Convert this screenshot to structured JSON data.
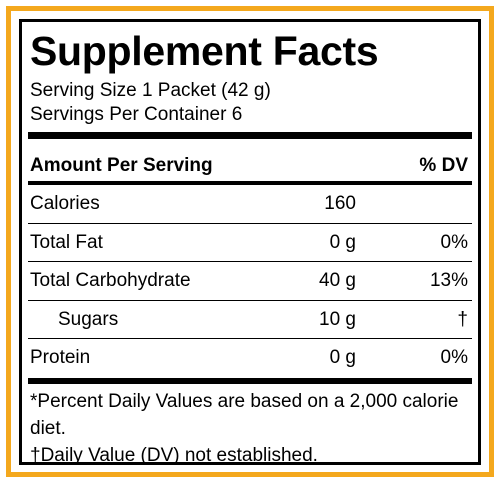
{
  "title": "Supplement Facts",
  "serving_size": "Serving Size 1 Packet (42 g)",
  "servings_per_container": "Servings Per Container 6",
  "table": {
    "header": [
      "Amount Per Serving",
      "% DV"
    ],
    "rows": [
      {
        "name": "Calories",
        "amount": "160"
      },
      {
        "name": "Total Fat",
        "amount": "0 g",
        "dv": "0%"
      },
      {
        "name": "Total Carbohydrate",
        "amount": "40 g",
        "dv": "13%"
      },
      {
        "name": "Sugars",
        "amount": "10 g",
        "dv": "†",
        "indent": true
      },
      {
        "name": "Protein",
        "amount": "0 g",
        "dv": "0%"
      }
    ]
  },
  "footnotes": [
    "*Percent Daily Values are based on a 2,000 calorie diet.",
    "†Daily Value (DV) not established."
  ]
}
